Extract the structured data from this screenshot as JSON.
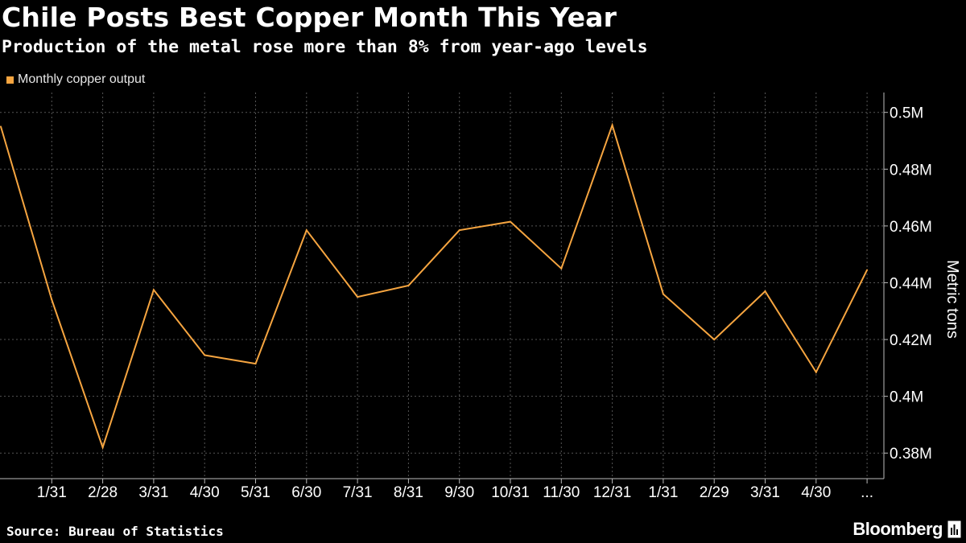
{
  "header": {
    "title": "Chile Posts Best Copper Month This Year",
    "subtitle": "Production of the metal rose more than 8% from year-ago levels"
  },
  "footer": {
    "source": "Source: Bureau of Statistics",
    "brand": "Bloomberg"
  },
  "colors": {
    "background": "#000000",
    "series": "#f6a540",
    "grid": "#555555",
    "text": "#ffffff"
  },
  "icons": {
    "brand_logo": "bloomberg-terminal-icon"
  },
  "chart_data": {
    "type": "line",
    "title": "Chile Posts Best Copper Month This Year",
    "subtitle": "Production of the metal rose more than 8% from year-ago levels",
    "xlabel": "",
    "ylabel": "Metric tons",
    "categories": [
      "12/31",
      "1/31",
      "2/28",
      "3/31",
      "4/30",
      "5/31",
      "6/30",
      "7/31",
      "8/31",
      "9/30",
      "10/31",
      "11/30",
      "12/31",
      "1/31",
      "2/29",
      "3/31",
      "4/30",
      "5/31"
    ],
    "x_tick_labels": [
      "1/31",
      "2/28",
      "3/31",
      "4/30",
      "5/31",
      "6/30",
      "7/31",
      "8/31",
      "9/30",
      "10/31",
      "11/30",
      "12/31",
      "1/31",
      "2/29",
      "3/31",
      "4/30",
      "..."
    ],
    "series": [
      {
        "name": "Monthly copper output",
        "values": [
          495000,
          434000,
          382000,
          437500,
          414500,
          411500,
          458500,
          435000,
          439000,
          458500,
          461500,
          445000,
          495500,
          436000,
          420000,
          437000,
          408500,
          444500
        ]
      }
    ],
    "yticks": [
      380000,
      400000,
      420000,
      440000,
      460000,
      480000,
      500000
    ],
    "ytick_labels": [
      "0.38M",
      "0.4M",
      "0.42M",
      "0.44M",
      "0.46M",
      "0.48M",
      "0.5M"
    ],
    "ylim": [
      371000,
      507000
    ],
    "y_axis_side": "right",
    "grid": true,
    "legend": "top-left"
  }
}
